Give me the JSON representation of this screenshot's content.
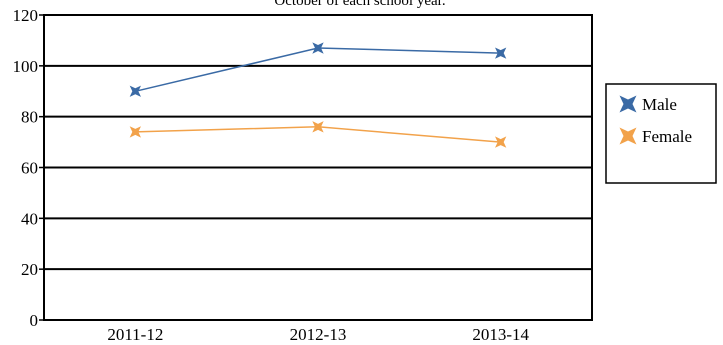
{
  "chart_data": {
    "type": "line",
    "title": "October of each school year.",
    "xlabel": "",
    "ylabel": "",
    "categories": [
      "2011-12",
      "2012-13",
      "2013-14"
    ],
    "ylim": [
      0,
      120
    ],
    "yticks": [
      0,
      20,
      40,
      60,
      80,
      100,
      120
    ],
    "grid": true,
    "legend_position": "right",
    "series": [
      {
        "name": "Male",
        "values": [
          90,
          107,
          105
        ],
        "color": "#3a6aa5",
        "marker": "star"
      },
      {
        "name": "Female",
        "values": [
          74,
          76,
          70
        ],
        "color": "#f2a24a",
        "marker": "star"
      }
    ]
  }
}
